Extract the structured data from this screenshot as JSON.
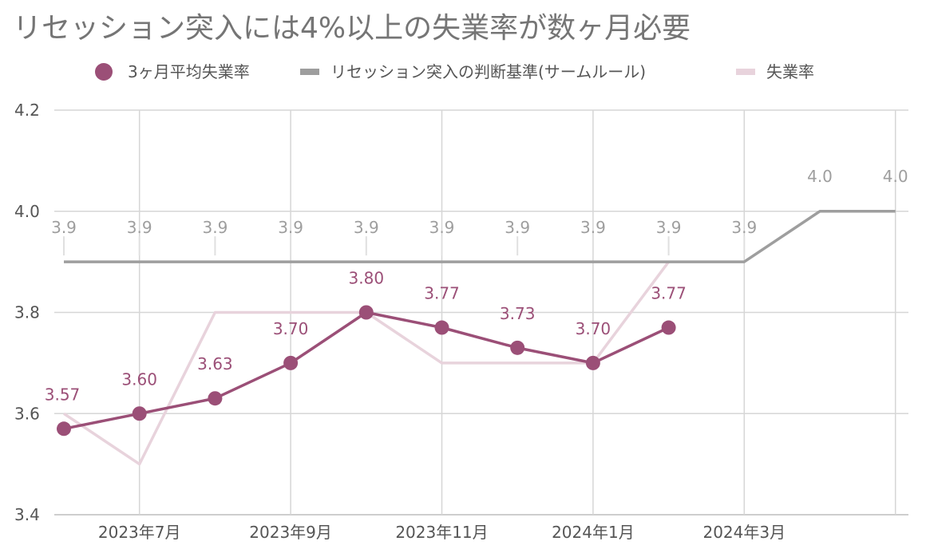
{
  "chart_data": {
    "type": "line",
    "title": "リセッション突入には4%以上の失業率が数ヶ月必要",
    "x": [
      "2023-06",
      "2023-07",
      "2023-08",
      "2023-09",
      "2023-10",
      "2023-11",
      "2023-12",
      "2024-01",
      "2024-02",
      "2024-03",
      "2024-04",
      "2024-05"
    ],
    "x_tick_labels": [
      {
        "x": "2023-07",
        "label": "2023年7月"
      },
      {
        "x": "2023-09",
        "label": "2023年9月"
      },
      {
        "x": "2023-11",
        "label": "2023年11月"
      },
      {
        "x": "2024-01",
        "label": "2024年1月"
      },
      {
        "x": "2024-03",
        "label": "2024年3月"
      }
    ],
    "y_ticks": [
      "3.4",
      "3.6",
      "3.8",
      "4.0",
      "4.2"
    ],
    "ylim": [
      3.4,
      4.2
    ],
    "grid": true,
    "legend_position": "top",
    "series": [
      {
        "name": "3ヶ月平均失業率",
        "color": "#9b4f77",
        "marker": "circle",
        "values": [
          3.57,
          3.6,
          3.63,
          3.7,
          3.8,
          3.77,
          3.73,
          3.7,
          3.77,
          null,
          null,
          null
        ],
        "data_labels": [
          "3.57",
          "3.60",
          "3.63",
          "3.70",
          "3.80",
          "3.77",
          "3.73",
          "3.70",
          "3.77",
          null,
          null,
          null
        ]
      },
      {
        "name": "リセッション突入の判断基準(サームルール)",
        "color": "#9e9e9e",
        "marker": "none",
        "values": [
          3.9,
          3.9,
          3.9,
          3.9,
          3.9,
          3.9,
          3.9,
          3.9,
          3.9,
          3.9,
          4.0,
          4.0
        ],
        "data_labels": [
          "3.9",
          "3.9",
          "3.9",
          "3.9",
          "3.9",
          "3.9",
          "3.9",
          "3.9",
          "3.9",
          "3.9",
          "4.0",
          "4.0"
        ]
      },
      {
        "name": "失業率",
        "color": "#e8d3dc",
        "marker": "none",
        "values": [
          3.6,
          3.5,
          3.8,
          3.8,
          3.8,
          3.7,
          3.7,
          3.7,
          3.9,
          null,
          null,
          null
        ],
        "data_labels": [
          null,
          null,
          null,
          null,
          null,
          null,
          null,
          null,
          null,
          null,
          null,
          null
        ]
      }
    ]
  }
}
